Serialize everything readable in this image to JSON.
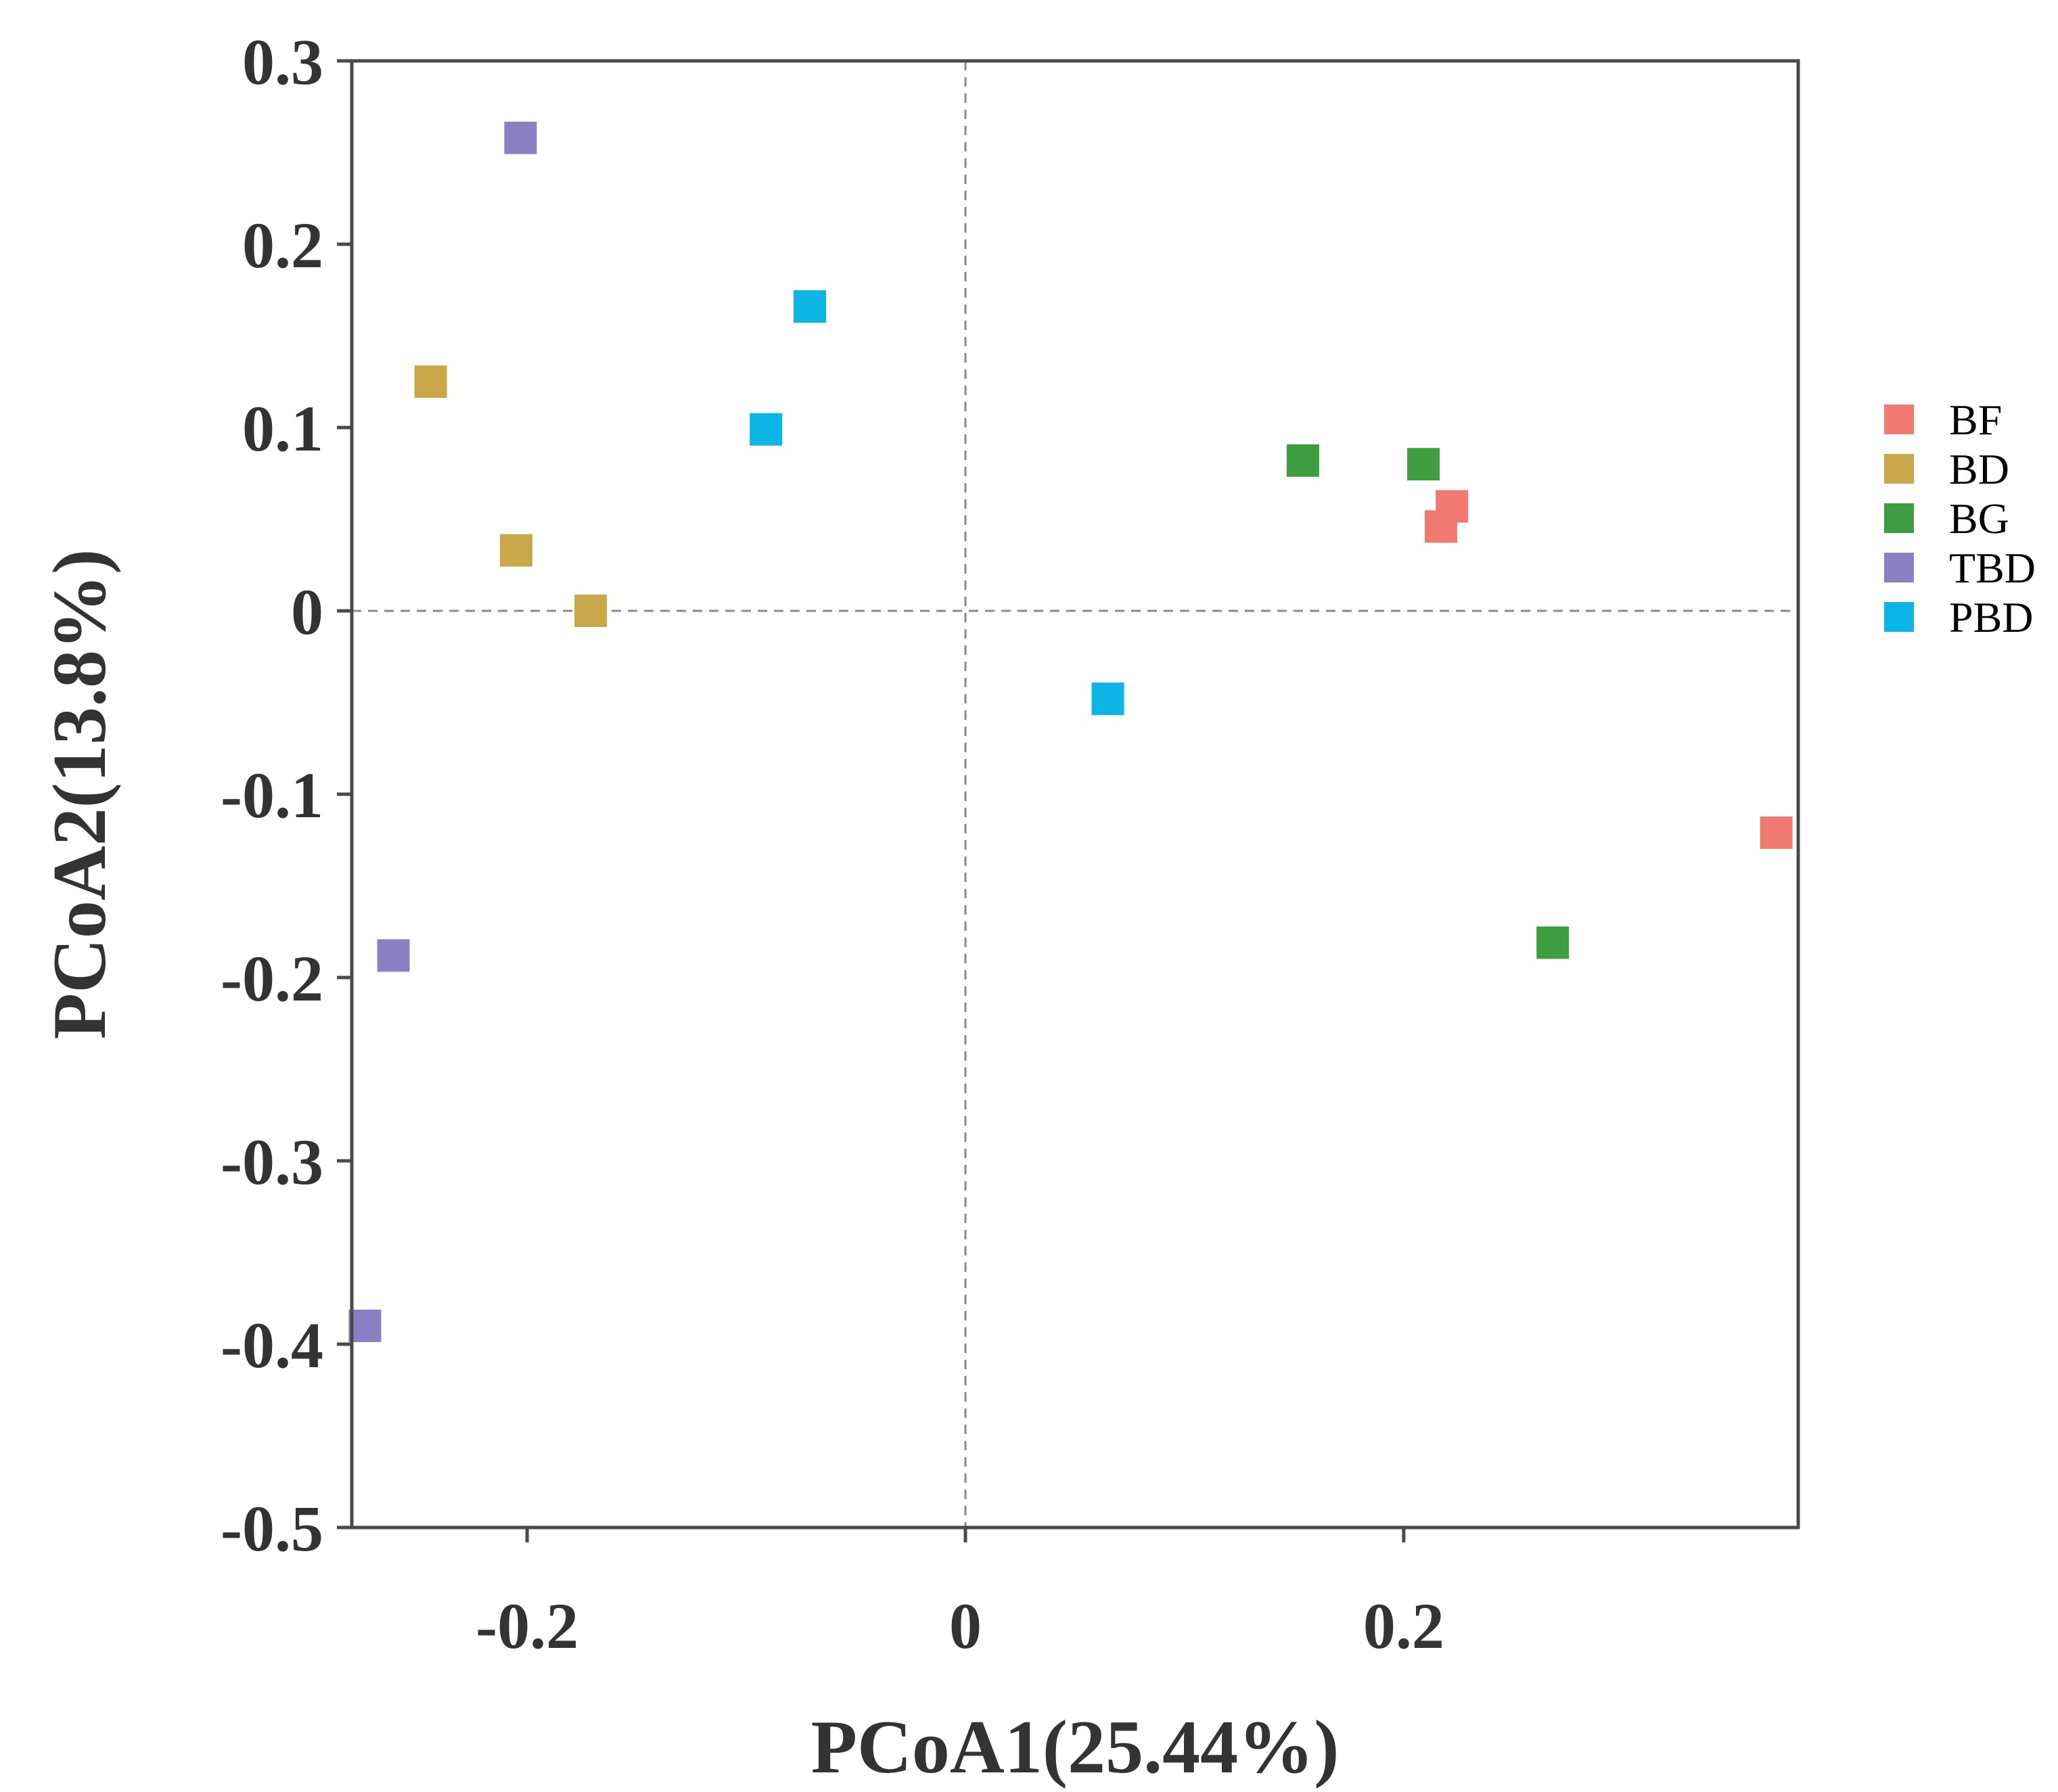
{
  "chart_data": {
    "type": "scatter",
    "title": "",
    "xlabel": "PCoA1(25.44%)",
    "ylabel": "PCoA2(13.8%)",
    "xlim": [
      -0.28,
      0.38
    ],
    "ylim": [
      -0.5,
      0.3
    ],
    "xticks": [
      -0.2,
      0,
      0.2
    ],
    "xtick_labels": [
      "-0.2",
      "0",
      "0.2"
    ],
    "yticks": [
      0.3,
      0.2,
      0.1,
      0,
      -0.1,
      -0.2,
      -0.3,
      -0.4,
      -0.5
    ],
    "ytick_labels": [
      "0.3",
      "0.2",
      "0.1",
      "0",
      "-0.1",
      "-0.2",
      "-0.3",
      "-0.4",
      "-0.5"
    ],
    "reference_lines": {
      "x": 0,
      "y": 0,
      "style": "dashed"
    },
    "grid": false,
    "legend_position": "right",
    "marker": "square",
    "series": [
      {
        "name": "BF",
        "color": "#F07A71",
        "points": [
          [
            0.222,
            0.057
          ],
          [
            0.217,
            0.046
          ],
          [
            0.37,
            -0.121
          ]
        ]
      },
      {
        "name": "BD",
        "color": "#C9A84A",
        "points": [
          [
            -0.244,
            0.125
          ],
          [
            -0.205,
            0.033
          ],
          [
            -0.171,
            0.0
          ]
        ]
      },
      {
        "name": "BG",
        "color": "#3F9E3F",
        "points": [
          [
            0.154,
            0.082
          ],
          [
            0.209,
            0.08
          ],
          [
            0.268,
            -0.181
          ]
        ]
      },
      {
        "name": "TBD",
        "color": "#8B80C3",
        "points": [
          [
            -0.203,
            0.258
          ],
          [
            -0.261,
            -0.188
          ],
          [
            -0.274,
            -0.39
          ]
        ]
      },
      {
        "name": "PBD",
        "color": "#0BB5E5",
        "points": [
          [
            -0.071,
            0.166
          ],
          [
            -0.091,
            0.099
          ],
          [
            0.065,
            -0.048
          ]
        ]
      }
    ]
  }
}
